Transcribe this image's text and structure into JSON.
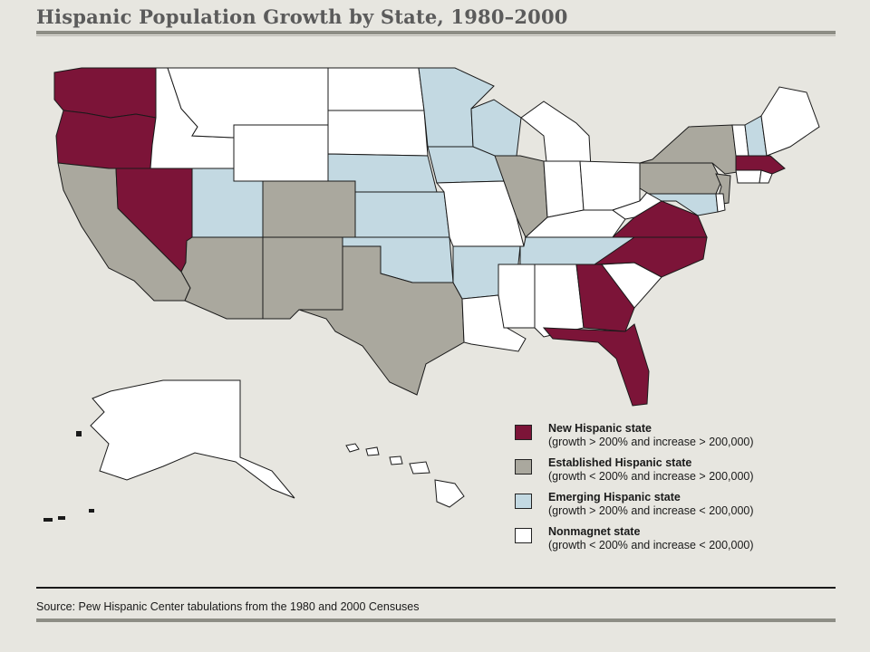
{
  "title": "Hispanic Population Growth by State, 1980–2000",
  "source": "Source: Pew Hispanic Center tabulations from the 1980 and 2000 Censuses",
  "colors": {
    "new": "#7c1438",
    "established": "#aaa89e",
    "emerging": "#c3d9e2",
    "nonmagnet": "#ffffff",
    "background": "#e7e6e0"
  },
  "legend": [
    {
      "category": "new",
      "label": "New Hispanic state",
      "criteria": "(growth > 200% and increase > 200,000)"
    },
    {
      "category": "established",
      "label": "Established Hispanic state",
      "criteria": "(growth < 200% and increase > 200,000)"
    },
    {
      "category": "emerging",
      "label": "Emerging Hispanic state",
      "criteria": "(growth > 200% and increase < 200,000)"
    },
    {
      "category": "nonmagnet",
      "label": "Nonmagnet state",
      "criteria": "(growth < 200% and increase < 200,000)"
    }
  ],
  "state_categories": {
    "WA": "new",
    "OR": "new",
    "NV": "new",
    "GA": "new",
    "NC": "new",
    "FL": "new",
    "MA": "new",
    "VA": "new",
    "CA": "established",
    "AZ": "established",
    "NM": "established",
    "CO": "established",
    "TX": "established",
    "IL": "established",
    "NY": "established",
    "PA": "established",
    "NJ": "established",
    "UT": "emerging",
    "NE": "emerging",
    "KS": "emerging",
    "OK": "emerging",
    "MN": "emerging",
    "IA": "emerging",
    "WI": "emerging",
    "AR": "emerging",
    "TN": "emerging",
    "NH": "emerging",
    "MD": "emerging",
    "ID": "nonmagnet",
    "MT": "nonmagnet",
    "WY": "nonmagnet",
    "ND": "nonmagnet",
    "SD": "nonmagnet",
    "MO": "nonmagnet",
    "LA": "nonmagnet",
    "MS": "nonmagnet",
    "AL": "nonmagnet",
    "SC": "nonmagnet",
    "KY": "nonmagnet",
    "IN": "nonmagnet",
    "OH": "nonmagnet",
    "MI": "nonmagnet",
    "WV": "nonmagnet",
    "ME": "nonmagnet",
    "VT": "nonmagnet",
    "CT": "nonmagnet",
    "RI": "nonmagnet",
    "DE": "nonmagnet",
    "AK": "nonmagnet",
    "HI": "nonmagnet"
  }
}
